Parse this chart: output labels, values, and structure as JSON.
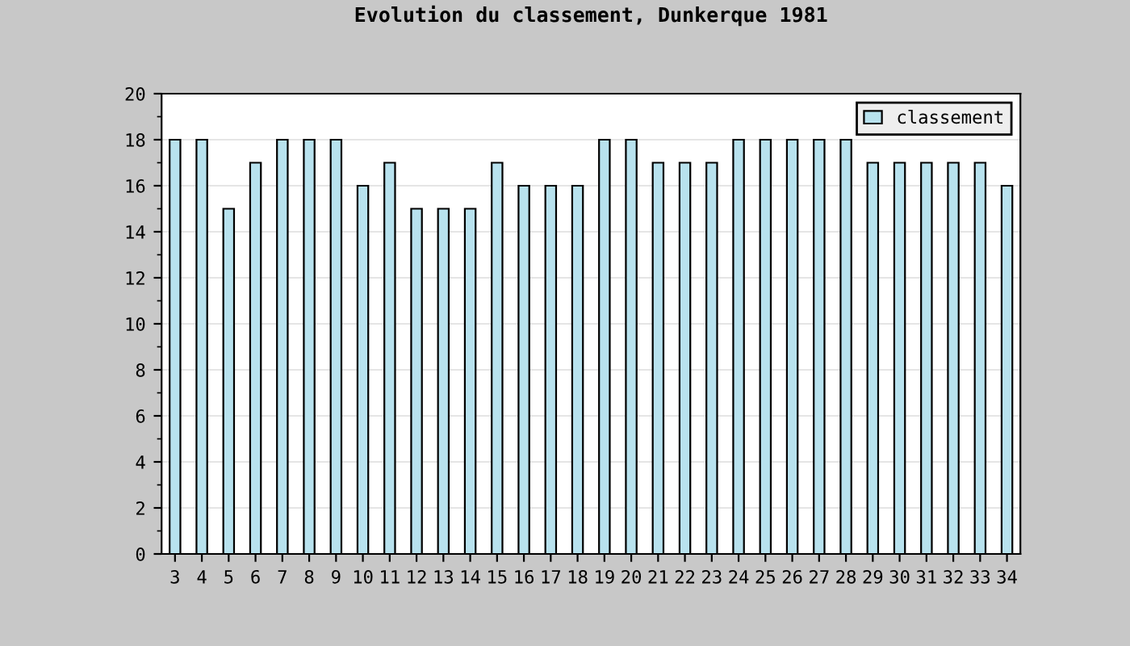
{
  "chart_data": {
    "type": "bar",
    "title": "Evolution du classement, Dunkerque 1981",
    "categories": [
      "3",
      "4",
      "5",
      "6",
      "7",
      "8",
      "9",
      "10",
      "11",
      "12",
      "13",
      "14",
      "15",
      "16",
      "17",
      "18",
      "19",
      "20",
      "21",
      "22",
      "23",
      "24",
      "25",
      "26",
      "27",
      "28",
      "29",
      "30",
      "31",
      "32",
      "33",
      "34"
    ],
    "series": [
      {
        "name": "classement",
        "color": "#b8e2ee",
        "values": [
          18,
          18,
          15,
          17,
          18,
          18,
          18,
          16,
          17,
          15,
          15,
          15,
          17,
          16,
          16,
          16,
          18,
          18,
          17,
          17,
          17,
          18,
          18,
          18,
          18,
          18,
          17,
          17,
          17,
          17,
          17,
          16
        ]
      }
    ],
    "ylim": [
      0,
      20
    ],
    "yticks": [
      0,
      2,
      4,
      6,
      8,
      10,
      12,
      14,
      16,
      18,
      20
    ],
    "grid": "y",
    "legend": "top right"
  }
}
